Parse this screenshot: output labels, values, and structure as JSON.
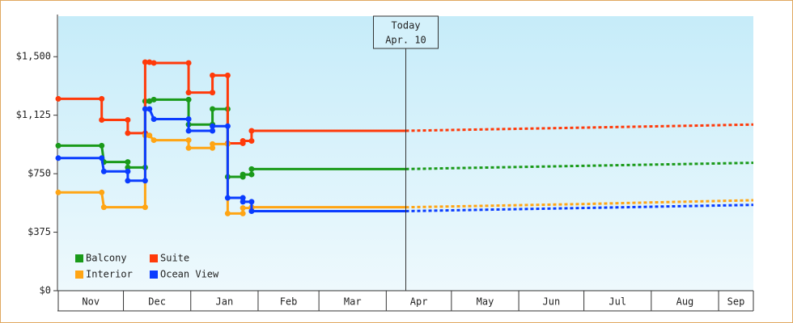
{
  "chart_data": {
    "type": "line",
    "xlim": [
      0,
      320
    ],
    "ylim": [
      0,
      1760
    ],
    "yticks": [
      {
        "value": 0,
        "label": "$0"
      },
      {
        "value": 375,
        "label": "$375"
      },
      {
        "value": 750,
        "label": "$750"
      },
      {
        "value": 1125,
        "label": "$1,125"
      },
      {
        "value": 1500,
        "label": "$1,500"
      }
    ],
    "xticks": [
      {
        "value": 0,
        "label": "Nov"
      },
      {
        "value": 30,
        "label": "Dec"
      },
      {
        "value": 61,
        "label": "Jan"
      },
      {
        "value": 92,
        "label": "Feb"
      },
      {
        "value": 120,
        "label": "Mar"
      },
      {
        "value": 151,
        "label": "Apr"
      },
      {
        "value": 181,
        "label": "May"
      },
      {
        "value": 212,
        "label": "Jun"
      },
      {
        "value": 242,
        "label": "Jul"
      },
      {
        "value": 273,
        "label": "Aug"
      },
      {
        "value": 304,
        "label": "Sep"
      }
    ],
    "legend": "lower left",
    "today": {
      "x": 160,
      "label": "Today",
      "date": "Apr. 10"
    },
    "series": [
      {
        "name": "Balcony",
        "color": "#1a9a1a",
        "x": [
          0,
          20,
          21,
          32,
          32,
          40,
          40,
          42,
          44,
          60,
          60,
          71,
          71,
          78,
          78,
          85,
          85,
          89,
          89,
          160
        ],
        "values": [
          930,
          930,
          825,
          825,
          790,
          790,
          1215,
          1215,
          1225,
          1225,
          1065,
          1065,
          1165,
          1165,
          730,
          730,
          745,
          745,
          780,
          780
        ],
        "forecast_x": [
          160,
          200,
          240,
          280,
          320
        ],
        "forecast_values": [
          780,
          790,
          800,
          810,
          820
        ]
      },
      {
        "name": "Suite",
        "color": "#ff3a0a",
        "x": [
          0,
          20,
          20,
          32,
          32,
          40,
          40,
          42,
          44,
          60,
          60,
          71,
          71,
          78,
          78,
          85,
          85,
          89,
          89,
          160
        ],
        "values": [
          1230,
          1230,
          1095,
          1095,
          1010,
          1010,
          1465,
          1465,
          1460,
          1460,
          1270,
          1270,
          1380,
          1380,
          945,
          945,
          960,
          960,
          1025,
          1025
        ],
        "forecast_x": [
          160,
          200,
          240,
          280,
          320
        ],
        "forecast_values": [
          1025,
          1035,
          1045,
          1055,
          1065
        ]
      },
      {
        "name": "Interior",
        "color": "#ffa514",
        "x": [
          0,
          20,
          21,
          40,
          40,
          42,
          44,
          60,
          60,
          71,
          71,
          78,
          78,
          85,
          85,
          89,
          89,
          160
        ],
        "values": [
          630,
          630,
          535,
          535,
          995,
          995,
          965,
          965,
          915,
          915,
          940,
          940,
          495,
          495,
          530,
          530,
          535,
          535
        ],
        "forecast_x": [
          160,
          200,
          240,
          280,
          320
        ],
        "forecast_values": [
          535,
          545,
          555,
          568,
          580
        ]
      },
      {
        "name": "Ocean View",
        "color": "#0a3cff",
        "x": [
          0,
          20,
          21,
          32,
          32,
          40,
          40,
          42,
          44,
          60,
          60,
          71,
          71,
          78,
          78,
          85,
          85,
          89,
          89,
          160
        ],
        "values": [
          850,
          850,
          765,
          765,
          705,
          705,
          1165,
          1165,
          1100,
          1100,
          1025,
          1025,
          1055,
          1055,
          595,
          595,
          570,
          570,
          510,
          510
        ],
        "forecast_x": [
          160,
          200,
          240,
          280,
          320
        ],
        "forecast_values": [
          510,
          520,
          530,
          540,
          550
        ]
      }
    ]
  }
}
